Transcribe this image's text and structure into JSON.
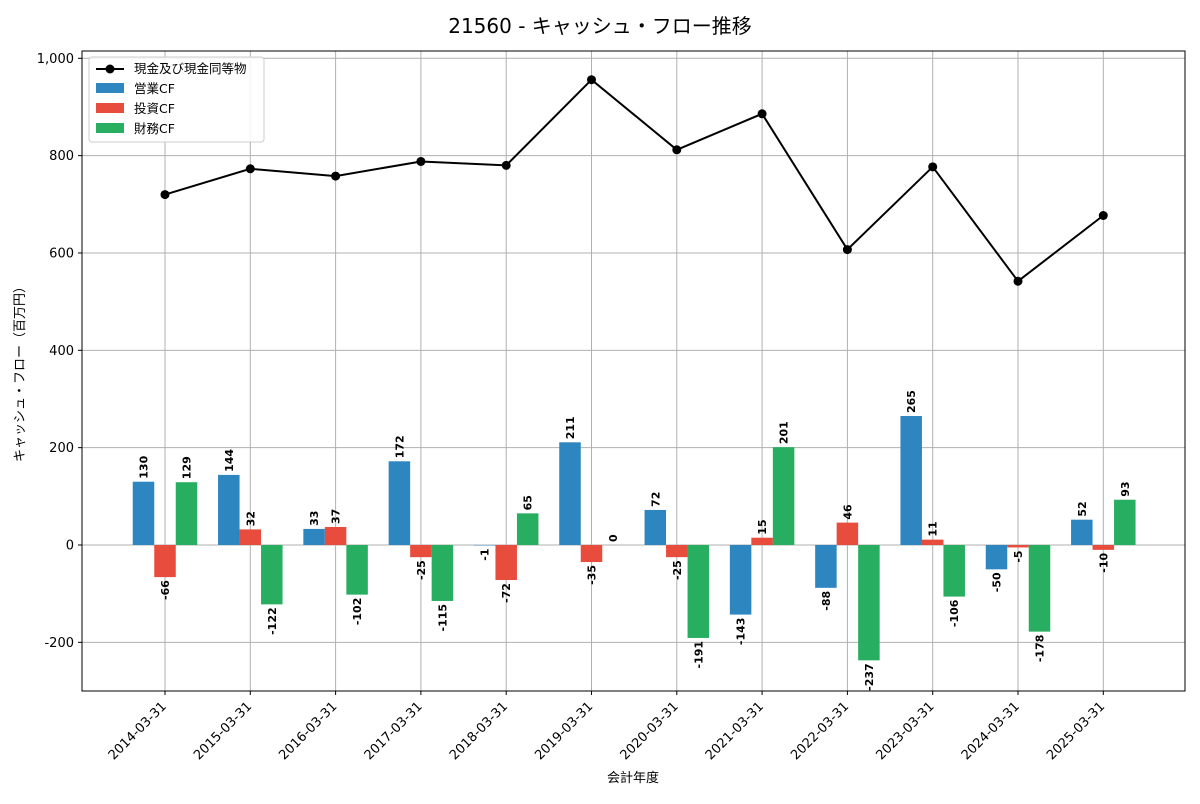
{
  "chart_data": {
    "type": "bar",
    "title": "21560 - キャッシュ・フロー推移",
    "xlabel": "会計年度",
    "ylabel": "キャッシュ・フロー（百万円）",
    "ylim": [
      -300,
      1015
    ],
    "yticks": [
      -200,
      0,
      200,
      400,
      600,
      800,
      1000
    ],
    "ytick_labels": [
      "-200",
      "0",
      "200",
      "400",
      "600",
      "800",
      "1,000"
    ],
    "grid": true,
    "legend_position": "top-left",
    "categories": [
      "2014-03-31",
      "2015-03-31",
      "2016-03-31",
      "2017-03-31",
      "2018-03-31",
      "2019-03-31",
      "2020-03-31",
      "2021-03-31",
      "2022-03-31",
      "2023-03-31",
      "2024-03-31",
      "2025-03-31"
    ],
    "series": [
      {
        "name": "営業CF",
        "kind": "bar",
        "color": "#2e86c1",
        "values": [
          130,
          144,
          33,
          172,
          -1,
          211,
          72,
          -143,
          -88,
          265,
          -50,
          52
        ]
      },
      {
        "name": "投資CF",
        "kind": "bar",
        "color": "#e74c3c",
        "values": [
          -66,
          32,
          37,
          -25,
          -72,
          -35,
          -25,
          15,
          46,
          11,
          -5,
          -10
        ]
      },
      {
        "name": "財務CF",
        "kind": "bar",
        "color": "#27ae60",
        "values": [
          129,
          -122,
          -102,
          -115,
          65,
          0,
          -191,
          201,
          -237,
          -106,
          -178,
          93
        ]
      },
      {
        "name": "現金及び現金同等物",
        "kind": "line",
        "color": "#000000",
        "values": [
          720,
          773,
          758,
          788,
          780,
          956,
          812,
          886,
          607,
          777,
          542,
          677
        ]
      }
    ]
  }
}
